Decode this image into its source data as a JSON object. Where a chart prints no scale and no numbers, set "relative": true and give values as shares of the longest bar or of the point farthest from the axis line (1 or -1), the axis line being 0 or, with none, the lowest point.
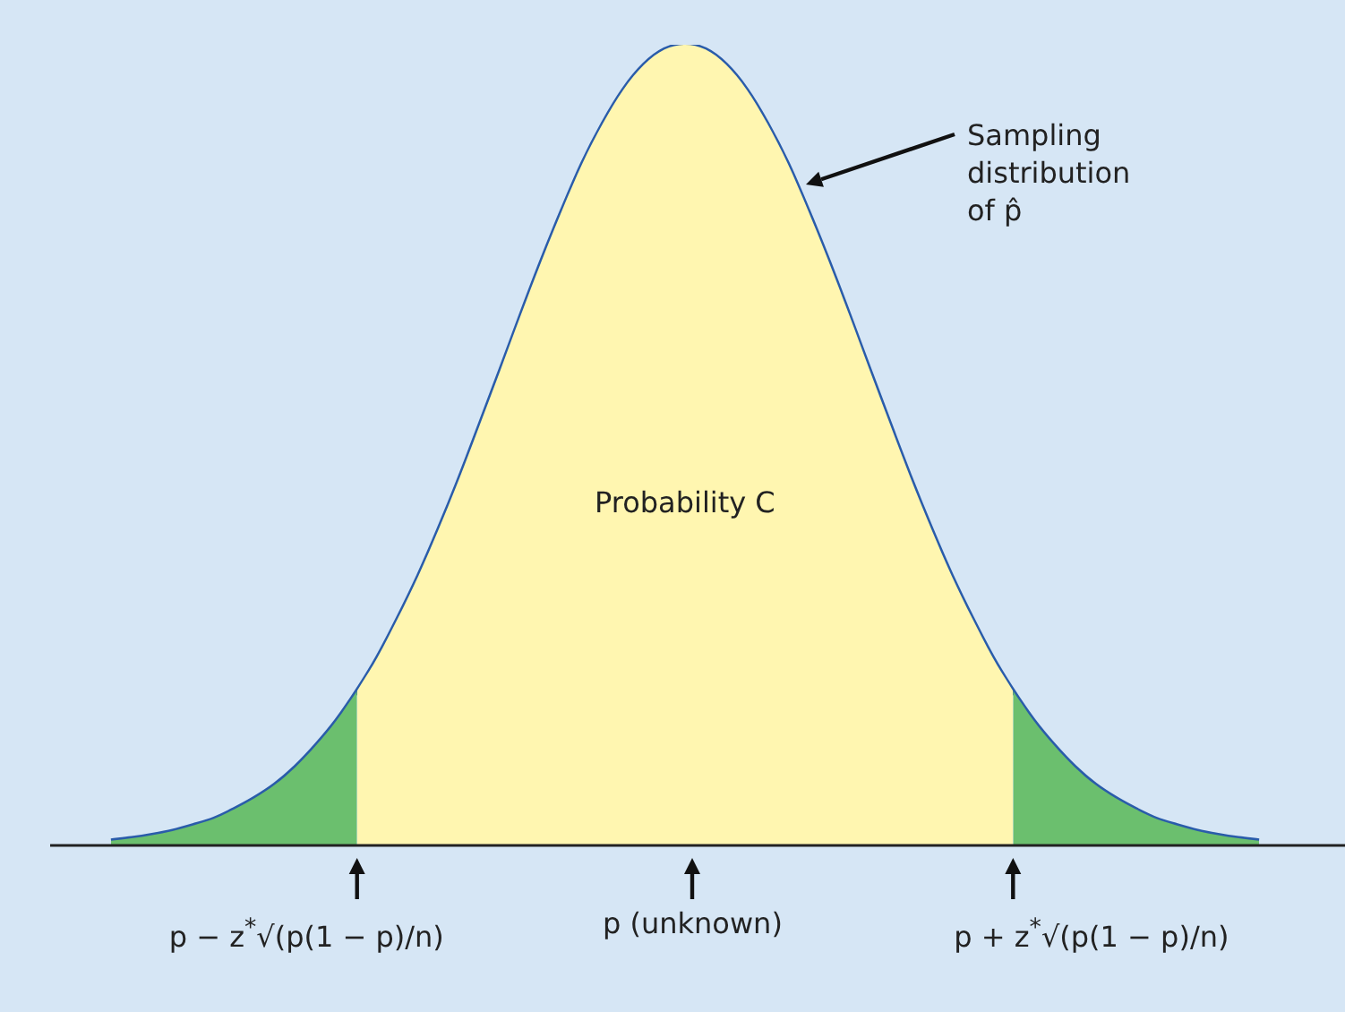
{
  "chart_data": {
    "type": "area",
    "relative": true,
    "legend": false,
    "grid": false,
    "tick_labels": false,
    "marker": "none",
    "categories": [
      null,
      null,
      null,
      null,
      null,
      null,
      null,
      null,
      null,
      null,
      null,
      null,
      null,
      null,
      null,
      null,
      null,
      null,
      null,
      null,
      null,
      null,
      null,
      null,
      null,
      null,
      null,
      null,
      null,
      null,
      null,
      null,
      null,
      null,
      null,
      null,
      null,
      null,
      null,
      null,
      null,
      null,
      null,
      null,
      null,
      null,
      null,
      null,
      null,
      null,
      null,
      null,
      null,
      null,
      null,
      null,
      null
    ],
    "series": [
      {
        "color": "#6bbf6e",
        "values": [
          0.006,
          0.009,
          0.013,
          0.018,
          0.025,
          0.033,
          0.045,
          0.059,
          0.076,
          0.098,
          0.125,
          0.156,
          0.193,
          null,
          null,
          null,
          null,
          null,
          null,
          null,
          null,
          null,
          null,
          null,
          null,
          null,
          null,
          null,
          null,
          null,
          null,
          null,
          null,
          null,
          null,
          null,
          null,
          null,
          null,
          null,
          null,
          null,
          null,
          null,
          null,
          null,
          null,
          null,
          null,
          null,
          null,
          null,
          null,
          null,
          null,
          null,
          null
        ]
      },
      {
        "color": "#fff6b0",
        "values": [
          null,
          null,
          null,
          null,
          null,
          null,
          null,
          null,
          null,
          null,
          null,
          null,
          0.193,
          0.235,
          0.284,
          0.337,
          0.396,
          0.459,
          0.526,
          0.594,
          0.663,
          0.73,
          0.793,
          0.852,
          0.902,
          0.944,
          0.975,
          0.994,
          1,
          0.994,
          0.975,
          0.944,
          0.902,
          0.852,
          0.793,
          0.73,
          0.663,
          0.594,
          0.526,
          0.459,
          0.396,
          0.337,
          0.284,
          0.235,
          0.193,
          null,
          null,
          null,
          null,
          null,
          null,
          null,
          null,
          null,
          null,
          null,
          null
        ]
      },
      {
        "color": "#6bbf6e",
        "values": [
          null,
          null,
          null,
          null,
          null,
          null,
          null,
          null,
          null,
          null,
          null,
          null,
          null,
          null,
          null,
          null,
          null,
          null,
          null,
          null,
          null,
          null,
          null,
          null,
          null,
          null,
          null,
          null,
          null,
          null,
          null,
          null,
          null,
          null,
          null,
          null,
          null,
          null,
          null,
          null,
          null,
          null,
          null,
          null,
          0.193,
          0.156,
          0.125,
          0.098,
          0.076,
          0.059,
          0.045,
          0.033,
          0.025,
          0.018,
          0.013,
          0.009,
          0.006
        ]
      },
      {
        "type": "line",
        "color": "#2a5caa",
        "values": [
          0.006,
          0.009,
          0.013,
          0.018,
          0.025,
          0.033,
          0.045,
          0.059,
          0.076,
          0.098,
          0.125,
          0.156,
          0.193,
          0.235,
          0.284,
          0.337,
          0.396,
          0.459,
          0.526,
          0.594,
          0.663,
          0.73,
          0.793,
          0.852,
          0.902,
          0.944,
          0.975,
          0.994,
          1,
          0.994,
          0.975,
          0.944,
          0.902,
          0.852,
          0.793,
          0.73,
          0.663,
          0.594,
          0.526,
          0.459,
          0.396,
          0.337,
          0.284,
          0.235,
          0.193,
          0.156,
          0.125,
          0.098,
          0.076,
          0.059,
          0.045,
          0.033,
          0.025,
          0.018,
          0.013,
          0.009,
          0.006
        ]
      }
    ],
    "annotations": [
      "Sampling distribution of p̂",
      "Probability C",
      "p − z$^{*}$√(p(1 − p)/n)",
      "p (unknown)",
      "p + z$^{*}$√(p(1 − p)/n)"
    ]
  }
}
